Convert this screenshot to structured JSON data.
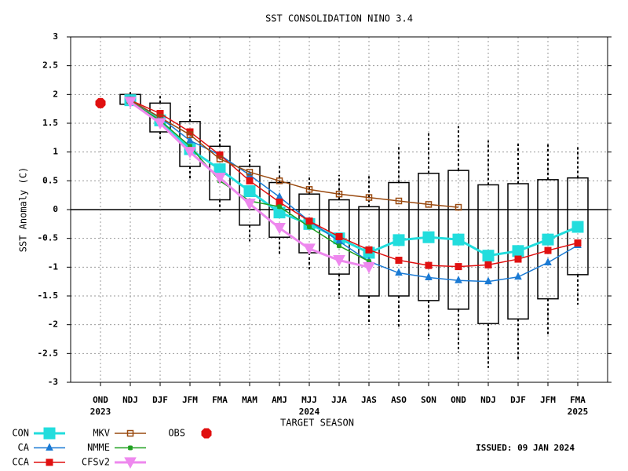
{
  "chart_data": {
    "type": "line",
    "title": "SST CONSOLIDATION NINO 3.4",
    "ylabel": "SST Anomaly (C)",
    "xlabel": "TARGET SEASON",
    "annotation": "ISSUED: 09 JAN 2024",
    "categories": [
      "OND",
      "NDJ",
      "DJF",
      "JFM",
      "FMA",
      "MAM",
      "AMJ",
      "MJJ",
      "JJA",
      "JAS",
      "ASO",
      "SON",
      "OND",
      "NDJ",
      "DJF",
      "JFM",
      "FMA"
    ],
    "category_years": [
      "2023",
      null,
      null,
      null,
      null,
      null,
      null,
      "2024",
      null,
      null,
      null,
      null,
      null,
      null,
      null,
      null,
      "2025"
    ],
    "ylim": [
      -3,
      3
    ],
    "yticks": [
      3,
      2.5,
      2,
      1.5,
      1,
      0.5,
      0,
      -0.5,
      -1,
      -1.5,
      -2,
      -2.5,
      -3
    ],
    "grid": true,
    "boxes": {
      "whisker_low": [
        null,
        1.8,
        1.2,
        0.52,
        -0.07,
        -0.55,
        -0.8,
        -1.05,
        -1.55,
        -2.0,
        -2.05,
        -2.25,
        -2.48,
        -2.75,
        -2.6,
        -2.2,
        -1.65
      ],
      "box_low": [
        null,
        1.83,
        1.35,
        0.75,
        0.17,
        -0.27,
        -0.48,
        -0.75,
        -1.12,
        -1.5,
        -1.5,
        -1.58,
        -1.73,
        -1.98,
        -1.9,
        -1.55,
        -1.13
      ],
      "box_high": [
        null,
        2.0,
        1.85,
        1.53,
        1.1,
        0.75,
        0.47,
        0.27,
        0.17,
        0.05,
        0.47,
        0.63,
        0.68,
        0.43,
        0.45,
        0.52,
        0.55
      ],
      "whisker_high": [
        null,
        2.05,
        2.0,
        1.8,
        1.37,
        1.02,
        0.77,
        0.58,
        0.6,
        0.6,
        1.13,
        1.35,
        1.45,
        1.2,
        1.18,
        1.17,
        1.1
      ]
    },
    "series": [
      {
        "name": "CON",
        "color": "#22dddd",
        "marker": "square",
        "width": 3,
        "values": [
          null,
          1.9,
          1.55,
          1.05,
          0.7,
          0.32,
          -0.05,
          -0.25,
          -0.5,
          -0.75,
          -0.53,
          -0.48,
          -0.52,
          -0.8,
          -0.72,
          -0.52,
          -0.3
        ]
      },
      {
        "name": "CA",
        "color": "#1a7ad4",
        "marker": "triangle",
        "width": 1.5,
        "values": [
          null,
          1.9,
          1.6,
          1.2,
          0.95,
          0.6,
          0.22,
          -0.2,
          -0.55,
          -0.9,
          -1.1,
          -1.18,
          -1.23,
          -1.25,
          -1.17,
          -0.92,
          -0.62
        ]
      },
      {
        "name": "CCA",
        "color": "#e01010",
        "marker": "square",
        "width": 1.5,
        "values": [
          null,
          1.9,
          1.67,
          1.35,
          0.95,
          0.5,
          0.13,
          -0.2,
          -0.47,
          -0.7,
          -0.88,
          -0.97,
          -0.99,
          -0.96,
          -0.86,
          -0.71,
          -0.58
        ]
      },
      {
        "name": "MKV",
        "color": "#9a4a10",
        "marker": "square-open",
        "width": 1.5,
        "values": [
          null,
          1.9,
          1.6,
          1.3,
          0.88,
          0.65,
          0.5,
          0.35,
          0.27,
          0.21,
          0.15,
          0.09,
          0.04,
          null,
          null,
          null,
          null
        ]
      },
      {
        "name": "NMME",
        "color": "#20a020",
        "marker": "star",
        "width": 1.5,
        "values": [
          null,
          1.88,
          1.55,
          1.1,
          0.5,
          0.15,
          0.05,
          -0.3,
          -0.63,
          -0.9,
          null,
          null,
          null,
          null,
          null,
          null,
          null
        ]
      },
      {
        "name": "CFSv2",
        "color": "#ee88ee",
        "marker": "triangle-down",
        "width": 3,
        "values": [
          null,
          1.87,
          1.5,
          1.0,
          0.55,
          0.1,
          -0.32,
          -0.68,
          -0.88,
          -1.0,
          null,
          null,
          null,
          null,
          null,
          null,
          null
        ]
      },
      {
        "name": "OBS",
        "color": "#e01010",
        "marker": "octagon",
        "width": 0,
        "values": [
          1.85,
          null,
          null,
          null,
          null,
          null,
          null,
          null,
          null,
          null,
          null,
          null,
          null,
          null,
          null,
          null,
          null
        ]
      }
    ]
  }
}
